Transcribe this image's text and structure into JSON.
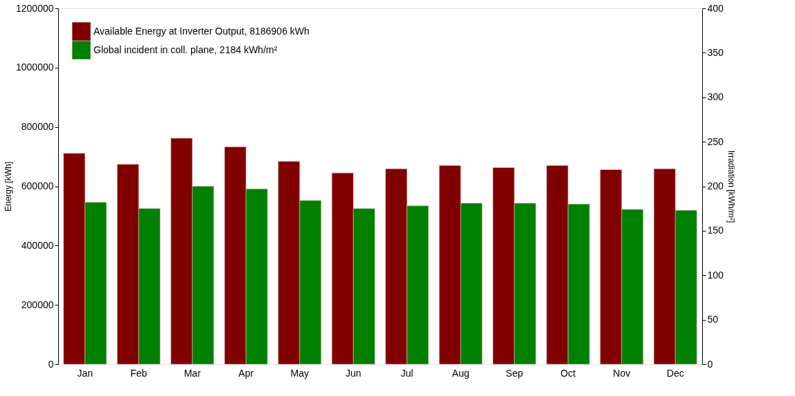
{
  "chart_data": {
    "type": "bar",
    "xlabel": null,
    "ylabel": "Energy  [kWh]",
    "y2label": "Irradiation  [kWh/m²]",
    "categories": [
      "Jan",
      "Feb",
      "Mar",
      "Apr",
      "May",
      "Jun",
      "Jul",
      "Aug",
      "Sep",
      "Oct",
      "Nov",
      "Dec"
    ],
    "series": [
      {
        "name": "Available Energy at Inverter Output,  8186906 kWh",
        "color": "#800000",
        "values": [
          711000,
          674000,
          762000,
          733000,
          684000,
          645000,
          659000,
          670000,
          663000,
          670000,
          656000,
          659000
        ]
      },
      {
        "name": "Global incident in coll. plane,  2184 kWh/m²",
        "color": "#008000",
        "axis": "y2",
        "values": [
          182,
          175,
          200,
          197,
          184,
          175,
          178,
          181,
          181,
          180,
          174,
          173
        ]
      }
    ],
    "ylim": [
      0,
      1200000
    ],
    "yticks": [
      0,
      200000,
      400000,
      600000,
      800000,
      1000000,
      1200000
    ],
    "y2lim": [
      0,
      400
    ],
    "y2ticks": [
      0,
      50,
      100,
      150,
      200,
      250,
      300,
      350,
      400
    ],
    "grid": false,
    "legend": "top left"
  }
}
